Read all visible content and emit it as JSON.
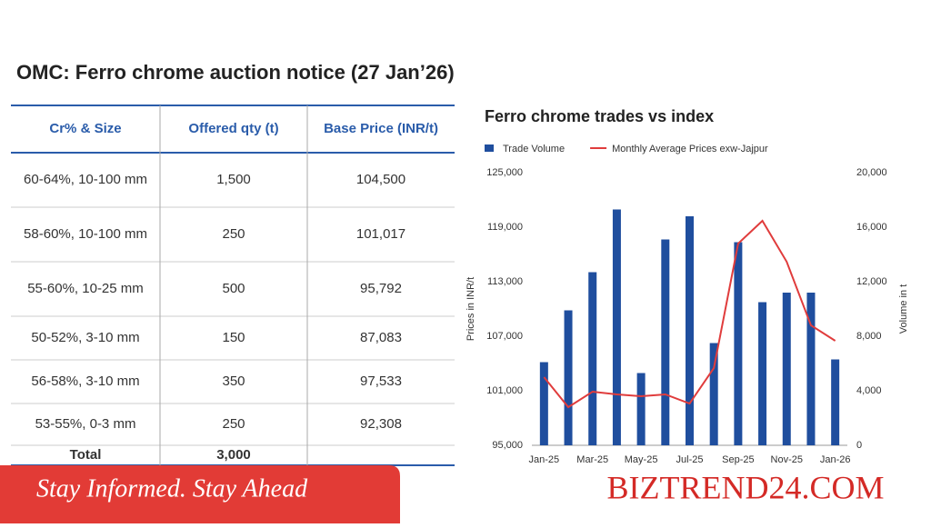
{
  "header": {
    "title": "OMC: Ferro chrome auction notice (27 Jan’26)"
  },
  "table": {
    "columns": [
      "Cr% & Size",
      "Offered qty (t)",
      "Base Price (INR/t)"
    ],
    "rows": [
      [
        "60-64%,  10-100 mm",
        "1,500",
        "104,500"
      ],
      [
        "58-60%,  10-100 mm",
        "250",
        "101,017"
      ],
      [
        "55-60%,  10-25 mm",
        "500",
        "95,792"
      ],
      [
        "50-52%,  3-10 mm",
        "150",
        "87,083"
      ],
      [
        "56-58%,  3-10 mm",
        "350",
        "97,533"
      ],
      [
        "53-55%,  0-3 mm",
        "250",
        "92,308"
      ]
    ],
    "total": [
      "Total",
      "3,000"
    ]
  },
  "chart_data": {
    "type": "bar-line",
    "title": "Ferro chrome trades vs index",
    "y_label": "Prices in INR/t",
    "y2_label": "Volume in t",
    "categories": [
      "Jan-25",
      null,
      "Mar-25",
      null,
      "May-25",
      null,
      "Jul-25",
      null,
      "Sep-25",
      null,
      "Nov-25",
      null,
      "Jan-26"
    ],
    "series": [
      {
        "name": "Trade Volume",
        "type": "bar",
        "axis": "y2",
        "color": "#1f4e9e",
        "values": [
          6100,
          9900,
          12700,
          17300,
          5300,
          15100,
          16800,
          7500,
          14900,
          10500,
          11200,
          11200,
          6300
        ]
      },
      {
        "name": "Monthly Average Prices exw-Jajpur",
        "type": "line",
        "color": "#e03c3c",
        "values": [
          102500,
          99200,
          100900,
          100600,
          100400,
          100600,
          99600,
          103500,
          117200,
          119700,
          115200,
          108200,
          106500
        ]
      }
    ],
    "ylim": [
      95000,
      125000
    ],
    "yticks": [
      {
        "value": 95000,
        "label": "95,000"
      },
      {
        "value": 101000,
        "label": "101,000"
      },
      {
        "value": 107000,
        "label": "107,000"
      },
      {
        "value": 113000,
        "label": "113,000"
      },
      {
        "value": 119000,
        "label": "119,000"
      },
      {
        "value": 125000,
        "label": "125,000"
      }
    ],
    "y2lim": [
      0,
      20000
    ],
    "y2ticks": [
      0,
      {
        "value": 4000,
        "label": "4,000"
      },
      {
        "value": 8000,
        "label": "8,000"
      },
      {
        "value": 12000,
        "label": "12,000"
      },
      {
        "value": 16000,
        "label": "16,000"
      },
      {
        "value": 20000,
        "label": "20,000"
      }
    ],
    "grid": false
  },
  "banner": {
    "tagline": "Stay Informed. Stay Ahead",
    "brand": "BIZTREND24.COM"
  }
}
